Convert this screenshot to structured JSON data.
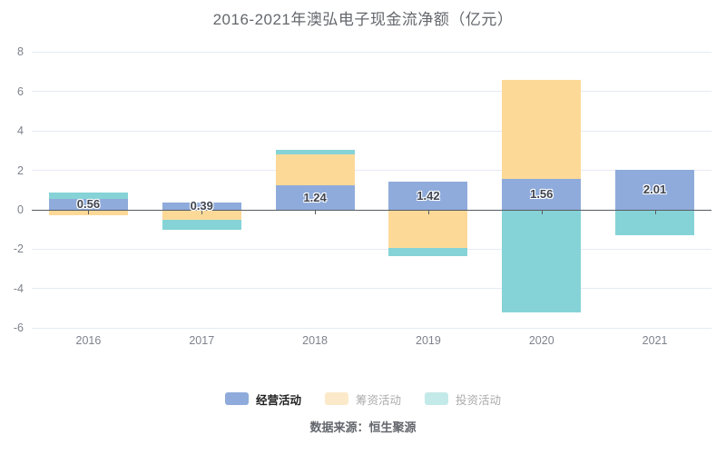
{
  "title": "2016-2021年澳弘电子现金流净额（亿元）",
  "source_note": "数据来源：恒生聚源",
  "colors": {
    "operating": "#8fabdb",
    "financing": "#fdd998",
    "investing": "#85d3d6",
    "gridline": "#e6eaf5",
    "zero_axis": "#565b61",
    "tick_text": "#7e828c",
    "value_label_text": "#3f4450",
    "title_text": "#63676d",
    "legend_active_text": "#1f1f1f",
    "legend_inactive_text": "#ababab"
  },
  "chart_data": {
    "type": "bar",
    "stacked": true,
    "title": "2016-2021年澳弘电子现金流净额（亿元）",
    "categories": [
      "2016",
      "2017",
      "2018",
      "2019",
      "2020",
      "2021"
    ],
    "series": [
      {
        "name": "经营活动",
        "color": "#8fabdb",
        "show_labels": true,
        "values": [
          0.56,
          0.39,
          1.24,
          1.42,
          1.56,
          2.01
        ],
        "labels": [
          "0.56",
          "0.39",
          "1.24",
          "1.42",
          "1.56",
          "2.01"
        ]
      },
      {
        "name": "筹资活动",
        "color": "#fdd998",
        "show_labels": false,
        "values": [
          -0.26,
          -0.52,
          1.56,
          -1.95,
          5.03,
          -0.06
        ]
      },
      {
        "name": "投资活动",
        "color": "#85d3d6",
        "show_labels": false,
        "values": [
          0.3,
          -0.48,
          0.24,
          -0.4,
          -5.22,
          -1.23
        ]
      }
    ],
    "xlabel": "",
    "ylabel": "",
    "yticks": [
      8,
      6,
      4,
      2,
      0,
      -2,
      -4,
      -6
    ],
    "ylim": [
      -6.5,
      8.5
    ],
    "grid": true,
    "legend_position": "bottom"
  },
  "legend": {
    "items": [
      {
        "label": "经营活动",
        "swatch": "#8fabdb",
        "active": true
      },
      {
        "label": "筹资活动",
        "swatch": "#fbe9c9",
        "active": false
      },
      {
        "label": "投资活动",
        "swatch": "#c4e9e9",
        "active": false
      }
    ]
  }
}
